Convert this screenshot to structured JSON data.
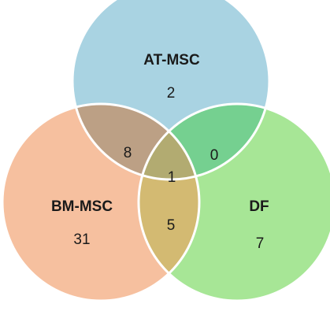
{
  "sets": [
    {
      "id": "at",
      "name": "AT-MSC",
      "color": "#a9d3e2"
    },
    {
      "id": "bm",
      "name": "BM-MSC",
      "color": "#f6c09f"
    },
    {
      "id": "df",
      "name": "DF",
      "color": "#a7e696"
    }
  ],
  "regions": {
    "at_only": "2",
    "bm_only": "31",
    "df_only": "7",
    "at_bm": "8",
    "at_df": "0",
    "bm_df": "5",
    "all": "1"
  },
  "region_colors": {
    "at_bm": "#bca085",
    "at_df": "#75d090",
    "bm_df": "#d3ba72",
    "all": "#b2ab71"
  }
}
